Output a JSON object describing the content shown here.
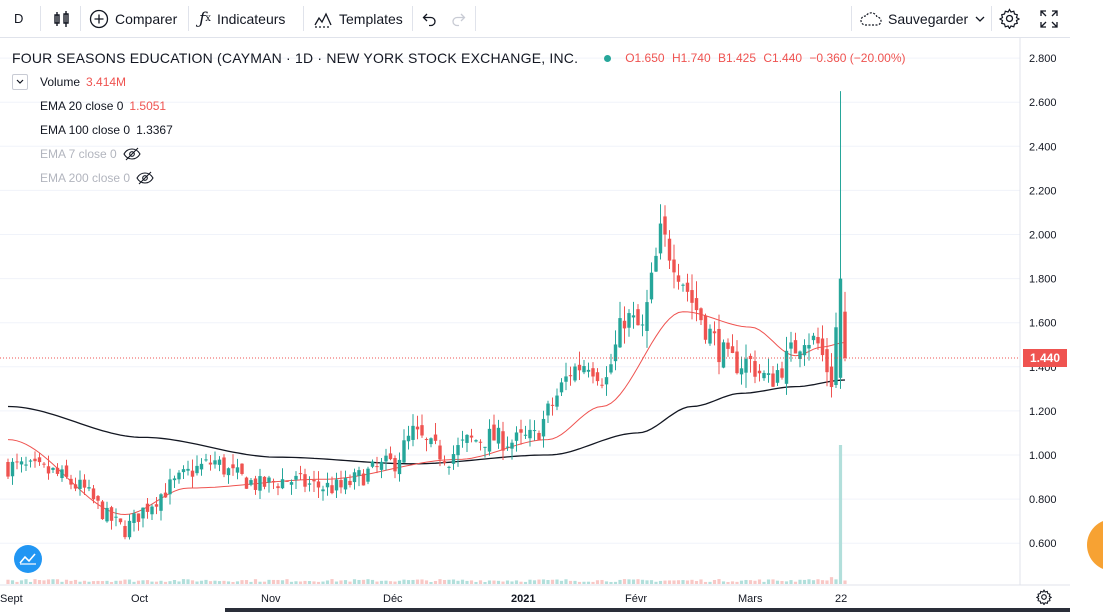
{
  "toolbar": {
    "interval": "D",
    "compare": "Comparer",
    "indicators": "Indicateurs",
    "templates": "Templates",
    "save": "Sauvegarder"
  },
  "symbol": {
    "name": "FOUR SEASONS EDUCATION (CAYMAN · 1D · NEW YORK STOCK EXCHANGE, INC.",
    "open": "O1.650",
    "high": "H1.740",
    "low": "B1.425",
    "close": "C1.440",
    "change": "−0.360 (−20.00%)"
  },
  "legend": {
    "volume_label": "Volume",
    "volume_value": "3.414M",
    "ema20_label": "EMA 20 close 0",
    "ema20_value": "1.5051",
    "ema100_label": "EMA 100 close 0",
    "ema100_value": "1.3367",
    "ema7_label": "EMA 7 close 0",
    "ema200_label": "EMA 200 close 0"
  },
  "price_axis": {
    "ticks": [
      "2.800",
      "2.600",
      "2.400",
      "2.200",
      "2.000",
      "1.800",
      "1.600",
      "1.400",
      "1.200",
      "1.000",
      "0.800",
      "0.600"
    ],
    "last_price": "1.440"
  },
  "time_axis": {
    "ticks": [
      "Sept",
      "Oct",
      "Nov",
      "Déc",
      "2021",
      "Févr",
      "Mars",
      "22"
    ]
  },
  "colors": {
    "up": "#26a69a",
    "down": "#ef5350",
    "ema20": "#ef5350",
    "ema100": "#131722",
    "volume_up": "#b2dfdb",
    "volume_down": "#f8c8c6"
  },
  "chart_data": {
    "type": "candlestick",
    "ylim": [
      0.45,
      2.85
    ],
    "last_close": 1.44,
    "anchors": [
      {
        "i": 0,
        "c": 0.95
      },
      {
        "i": 10,
        "c": 0.92
      },
      {
        "i": 17,
        "c": 0.84
      },
      {
        "i": 22,
        "c": 0.72
      },
      {
        "i": 26,
        "c": 0.66
      },
      {
        "i": 30,
        "c": 0.75
      },
      {
        "i": 35,
        "c": 0.84
      },
      {
        "i": 41,
        "c": 0.93
      },
      {
        "i": 46,
        "c": 0.97
      },
      {
        "i": 50,
        "c": 0.91
      },
      {
        "i": 56,
        "c": 0.86
      },
      {
        "i": 62,
        "c": 0.89
      },
      {
        "i": 68,
        "c": 0.86
      },
      {
        "i": 74,
        "c": 0.85
      },
      {
        "i": 80,
        "c": 0.92
      },
      {
        "i": 86,
        "c": 0.97
      },
      {
        "i": 90,
        "c": 1.1
      },
      {
        "i": 94,
        "c": 1.03
      },
      {
        "i": 98,
        "c": 0.99
      },
      {
        "i": 102,
        "c": 1.06
      },
      {
        "i": 107,
        "c": 1.08
      },
      {
        "i": 112,
        "c": 1.06
      },
      {
        "i": 117,
        "c": 1.08
      },
      {
        "i": 121,
        "c": 1.23
      },
      {
        "i": 125,
        "c": 1.38
      },
      {
        "i": 129,
        "c": 1.43
      },
      {
        "i": 133,
        "c": 1.34
      },
      {
        "i": 137,
        "c": 1.63
      },
      {
        "i": 141,
        "c": 1.56
      },
      {
        "i": 145,
        "c": 1.99
      },
      {
        "i": 148,
        "c": 1.9
      },
      {
        "i": 152,
        "c": 1.7
      },
      {
        "i": 156,
        "c": 1.55
      },
      {
        "i": 160,
        "c": 1.42
      },
      {
        "i": 165,
        "c": 1.42
      },
      {
        "i": 169,
        "c": 1.33
      },
      {
        "i": 173,
        "c": 1.43
      },
      {
        "i": 177,
        "c": 1.55
      },
      {
        "i": 180,
        "c": 1.5
      },
      {
        "i": 183,
        "c": 1.34
      },
      {
        "i": 185,
        "c": 1.8
      },
      {
        "i": 186,
        "c": 1.44
      }
    ],
    "ema20": [
      {
        "i": 0,
        "v": 1.07
      },
      {
        "i": 26,
        "v": 0.73
      },
      {
        "i": 40,
        "v": 0.85
      },
      {
        "i": 70,
        "v": 0.89
      },
      {
        "i": 100,
        "v": 0.98
      },
      {
        "i": 120,
        "v": 1.07
      },
      {
        "i": 132,
        "v": 1.22
      },
      {
        "i": 150,
        "v": 1.65
      },
      {
        "i": 165,
        "v": 1.58
      },
      {
        "i": 175,
        "v": 1.45
      },
      {
        "i": 181,
        "v": 1.49
      },
      {
        "i": 186,
        "v": 1.51
      }
    ],
    "ema100": [
      {
        "i": 0,
        "v": 1.22
      },
      {
        "i": 30,
        "v": 1.08
      },
      {
        "i": 60,
        "v": 0.99
      },
      {
        "i": 90,
        "v": 0.96
      },
      {
        "i": 120,
        "v": 1.0
      },
      {
        "i": 140,
        "v": 1.1
      },
      {
        "i": 152,
        "v": 1.22
      },
      {
        "i": 163,
        "v": 1.28
      },
      {
        "i": 175,
        "v": 1.31
      },
      {
        "i": 186,
        "v": 1.34
      }
    ],
    "spike": {
      "i": 185,
      "high": 2.65,
      "open": 1.35,
      "close": 1.8,
      "low": 1.3
    },
    "last_bar": {
      "i": 186,
      "open": 1.65,
      "high": 1.74,
      "low": 1.425,
      "close": 1.44
    },
    "volume_spike": {
      "i": 185,
      "value": 3.414
    }
  }
}
